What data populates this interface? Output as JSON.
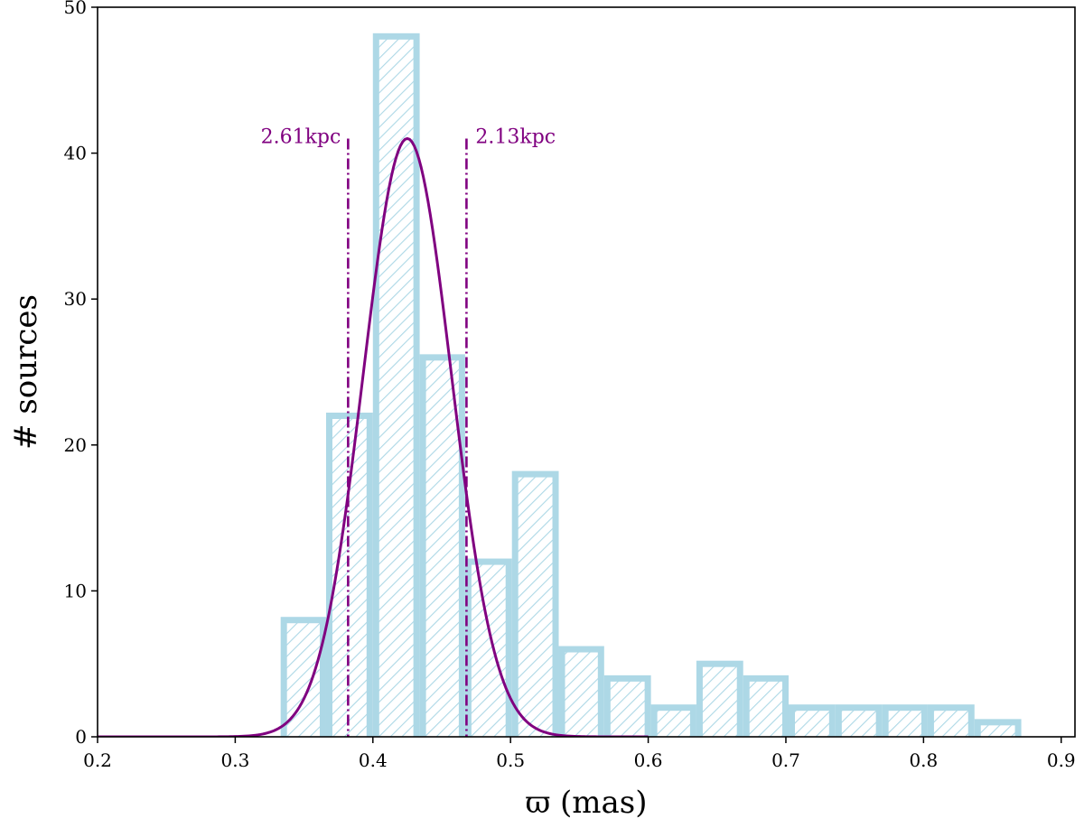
{
  "chart_data": {
    "type": "bar",
    "subtype": "histogram",
    "xlabel": "ϖ (mas)",
    "ylabel": "# sources",
    "xlim": [
      0.2,
      0.91
    ],
    "ylim": [
      0,
      50
    ],
    "xticks": [
      "0.2",
      "0.3",
      "0.4",
      "0.5",
      "0.6",
      "0.7",
      "0.8",
      "0.9"
    ],
    "yticks": [
      "0",
      "10",
      "20",
      "30",
      "40",
      "50"
    ],
    "bins": [
      {
        "x0": 0.333,
        "x1": 0.366,
        "count": 8
      },
      {
        "x0": 0.366,
        "x1": 0.4,
        "count": 22
      },
      {
        "x0": 0.4,
        "x1": 0.434,
        "count": 48
      },
      {
        "x0": 0.434,
        "x1": 0.467,
        "count": 26
      },
      {
        "x0": 0.467,
        "x1": 0.501,
        "count": 12
      },
      {
        "x0": 0.501,
        "x1": 0.535,
        "count": 18
      },
      {
        "x0": 0.535,
        "x1": 0.568,
        "count": 6
      },
      {
        "x0": 0.568,
        "x1": 0.602,
        "count": 4
      },
      {
        "x0": 0.602,
        "x1": 0.635,
        "count": 2
      },
      {
        "x0": 0.635,
        "x1": 0.669,
        "count": 5
      },
      {
        "x0": 0.669,
        "x1": 0.702,
        "count": 4
      },
      {
        "x0": 0.702,
        "x1": 0.736,
        "count": 2
      },
      {
        "x0": 0.736,
        "x1": 0.77,
        "count": 2
      },
      {
        "x0": 0.77,
        "x1": 0.803,
        "count": 2
      },
      {
        "x0": 0.803,
        "x1": 0.837,
        "count": 2
      },
      {
        "x0": 0.837,
        "x1": 0.871,
        "count": 1
      }
    ],
    "gaussian_fit": {
      "amplitude": 41,
      "mean": 0.425,
      "sigma": 0.032,
      "x_range": [
        0.2,
        0.6
      ]
    },
    "vlines": [
      {
        "x": 0.382,
        "label": "2.61kpc",
        "label_side": "left"
      },
      {
        "x": 0.468,
        "label": "2.13kpc",
        "label_side": "right"
      }
    ],
    "vline_top": 41,
    "colors": {
      "bar_edge": "#add8e6",
      "hatch": "#add8e6",
      "fit": "#800080",
      "annotation": "#800080"
    },
    "grid": false,
    "legend": "none"
  }
}
